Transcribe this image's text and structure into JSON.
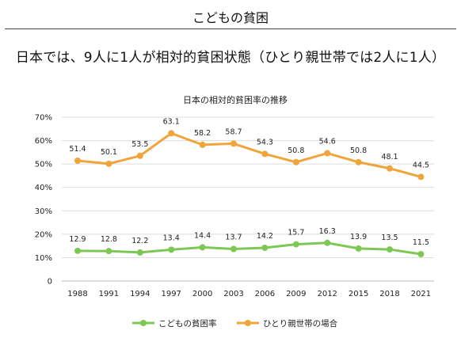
{
  "header": {
    "title": "こどもの貧困"
  },
  "headline": "日本では、9人に1人が相対的貧困状態（ひとり親世帯では2人に1人）",
  "chart_data": {
    "type": "line",
    "title": "日本の相対的貧困率の推移",
    "xlabel": "",
    "ylabel": "",
    "ylim": [
      0,
      70
    ],
    "yticks": [
      "0",
      "10%",
      "20%",
      "30%",
      "40%",
      "50%",
      "60%",
      "70%"
    ],
    "grid": true,
    "legend_position": "bottom",
    "x": [
      "1988",
      "1991",
      "1994",
      "1997",
      "2000",
      "2003",
      "2006",
      "2009",
      "2012",
      "2015",
      "2018",
      "2021"
    ],
    "series": [
      {
        "name": "こどもの貧困率",
        "color": "#7dc855",
        "values": [
          12.9,
          12.8,
          12.2,
          13.4,
          14.4,
          13.7,
          14.2,
          15.7,
          16.3,
          13.9,
          13.5,
          11.5
        ],
        "labels": [
          "12.9",
          "12.8",
          "12.2",
          "13.4",
          "14.4",
          "13.7",
          "14.2",
          "15.7",
          "16.3",
          "13.9",
          "13.5",
          "11.5"
        ]
      },
      {
        "name": "ひとり親世帯の場合",
        "color": "#f0a43a",
        "values": [
          51.4,
          50.1,
          53.5,
          63.1,
          58.2,
          58.7,
          54.3,
          50.8,
          54.6,
          50.8,
          48.1,
          44.5
        ],
        "labels": [
          "51.4",
          "50.1",
          "53.5",
          "63.1",
          "58.2",
          "58.7",
          "54.3",
          "50.8",
          "54.6",
          "50.8",
          "48.1",
          "44.5"
        ]
      }
    ]
  }
}
